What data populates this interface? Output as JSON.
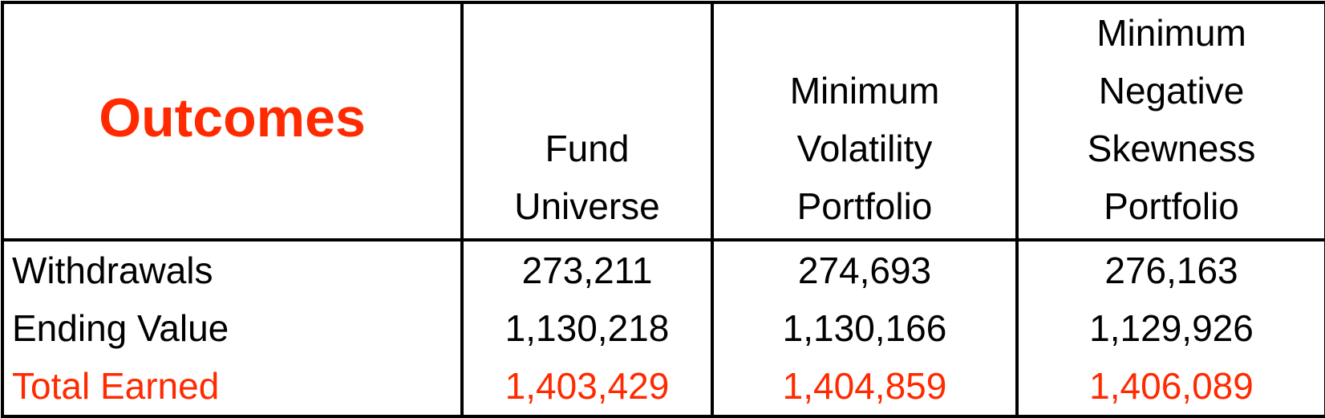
{
  "chart_data": {
    "type": "table",
    "title": "Outcomes",
    "columns": [
      [
        "Fund",
        "Universe"
      ],
      [
        "Minimum",
        "Volatility",
        "Portfolio"
      ],
      [
        "Minimum",
        "Negative",
        "Skewness",
        "Portfolio"
      ]
    ],
    "rows": [
      {
        "label": "Withdrawals",
        "values": [
          "273,211",
          "274,693",
          "276,163"
        ]
      },
      {
        "label": "Ending Value",
        "values": [
          "1,130,218",
          "1,130,166",
          "1,129,926"
        ]
      },
      {
        "label": "Total Earned",
        "values": [
          "1,403,429",
          "1,404,859",
          "1,406,089"
        ]
      }
    ],
    "colors": {
      "accent": "#ff2a00",
      "text": "#000000",
      "border": "#000000"
    }
  }
}
